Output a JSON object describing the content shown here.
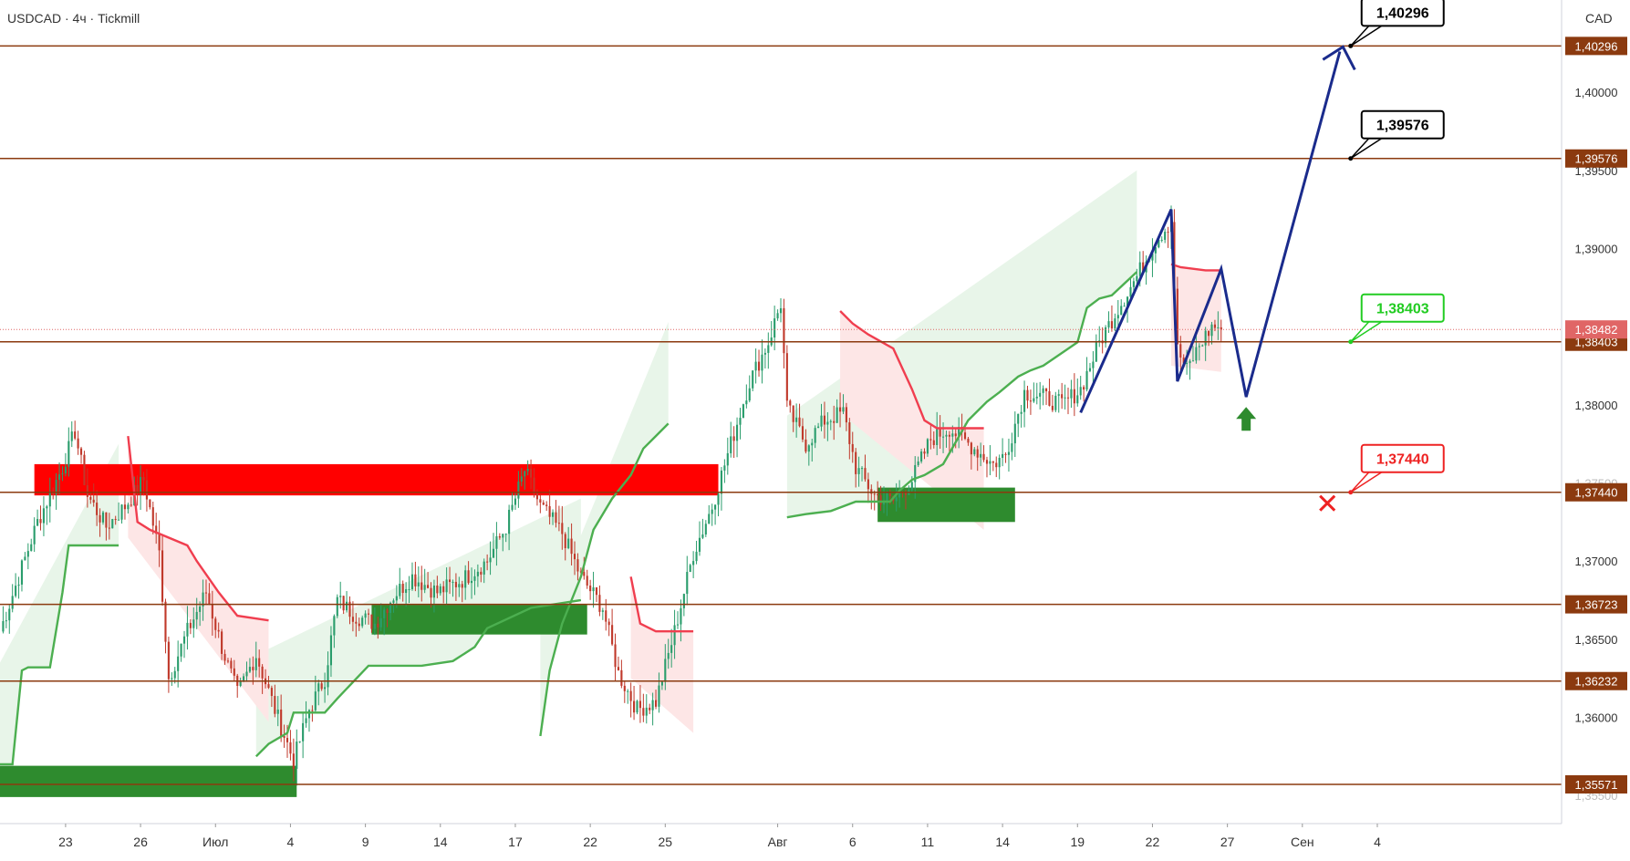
{
  "header": {
    "symbol": "USDCAD",
    "timeframe": "4ч",
    "broker": "Tickmill",
    "title_text": "USDCAD · 4ч · Tickmill",
    "currency": "CAD"
  },
  "chart_data": {
    "type": "candlestick",
    "price_range": [
      1.3532,
      1.4059
    ],
    "x_range_bars": [
      0,
      500
    ],
    "y_ticks": [
      {
        "value": 1.4,
        "label": "1,40000"
      },
      {
        "value": 1.395,
        "label": "1,39500"
      },
      {
        "value": 1.39,
        "label": "1,39000"
      },
      {
        "value": 1.385,
        "label": "1,38500"
      },
      {
        "value": 1.38,
        "label": "1,38000"
      },
      {
        "value": 1.375,
        "label": "1,37500"
      },
      {
        "value": 1.37,
        "label": "1,37000"
      },
      {
        "value": 1.365,
        "label": "1,36500"
      },
      {
        "value": 1.36,
        "label": "1,36000"
      },
      {
        "value": 1.355,
        "label": "1,35500"
      }
    ],
    "x_ticks": [
      {
        "bar": 21,
        "label": "23"
      },
      {
        "bar": 45,
        "label": "26"
      },
      {
        "bar": 69,
        "label": "Июл"
      },
      {
        "bar": 93,
        "label": "4"
      },
      {
        "bar": 117,
        "label": "9"
      },
      {
        "bar": 141,
        "label": "14"
      },
      {
        "bar": 165,
        "label": "17"
      },
      {
        "bar": 189,
        "label": "22"
      },
      {
        "bar": 213,
        "label": "25"
      },
      {
        "bar": 249,
        "label": "Авг"
      },
      {
        "bar": 273,
        "label": "6"
      },
      {
        "bar": 297,
        "label": "11"
      },
      {
        "bar": 321,
        "label": "14"
      },
      {
        "bar": 345,
        "label": "19"
      },
      {
        "bar": 369,
        "label": "22"
      },
      {
        "bar": 393,
        "label": "27"
      },
      {
        "bar": 417,
        "label": "Сен"
      },
      {
        "bar": 441,
        "label": "4"
      }
    ],
    "levels": [
      {
        "value": 1.40296,
        "label": "1,40296"
      },
      {
        "value": 1.39576,
        "label": "1,39576"
      },
      {
        "value": 1.38403,
        "label": "1,38403"
      },
      {
        "value": 1.3744,
        "label": "1,37440"
      },
      {
        "value": 1.36723,
        "label": "1,36723"
      },
      {
        "value": 1.36232,
        "label": "1,36232"
      },
      {
        "value": 1.35571,
        "label": "1,35571"
      }
    ],
    "current_price": {
      "value": 1.38482,
      "label": "1,38482"
    },
    "callouts": [
      {
        "label": "1,40296",
        "value": 1.40296,
        "bar": 431,
        "color": "#000000"
      },
      {
        "label": "1,39576",
        "value": 1.39576,
        "bar": 431,
        "color": "#000000"
      },
      {
        "label": "1,38403",
        "value": 1.38403,
        "bar": 431,
        "color": "#22cc22"
      },
      {
        "label": "1,37440",
        "value": 1.3744,
        "bar": 431,
        "color": "#ee2222"
      }
    ],
    "zones": [
      {
        "type": "supply",
        "bar_from": 11,
        "bar_to": 230,
        "top": 1.3762,
        "bottom": 1.3742
      },
      {
        "type": "demand",
        "bar_from": 0,
        "bar_to": 95,
        "top": 1.3569,
        "bottom": 1.3549
      },
      {
        "type": "demand",
        "bar_from": 119,
        "bar_to": 188,
        "top": 1.3672,
        "bottom": 1.3653
      },
      {
        "type": "demand",
        "bar_from": 281,
        "bar_to": 325,
        "top": 1.3747,
        "bottom": 1.3725
      }
    ],
    "forecast_path": [
      {
        "bar": 346,
        "value": 1.3795
      },
      {
        "bar": 375,
        "value": 1.3925
      },
      {
        "bar": 377,
        "value": 1.3815
      },
      {
        "bar": 391,
        "value": 1.3887
      },
      {
        "bar": 399,
        "value": 1.3805
      },
      {
        "bar": 429,
        "value": 1.4026
      }
    ],
    "target_arrow": {
      "bar": 430,
      "value": 1.4029
    },
    "buy_arrow": {
      "bar": 399,
      "value": 1.3791
    },
    "invalidation_cross": {
      "bar": 425,
      "value": 1.3737
    },
    "colors": {
      "level": "#8b3a0f",
      "supply": "#ff0000",
      "demand": "#2e8b2e",
      "bull_candle": "#2a9d6c",
      "bear_candle": "#c0392b",
      "support_line": "#4caf50",
      "resistance_line": "#f03e4f",
      "support_fill": "#e8f5e9",
      "resistance_fill": "#fde6e6",
      "forecast": "#1a2b8c",
      "current_price": "#e06666"
    }
  }
}
